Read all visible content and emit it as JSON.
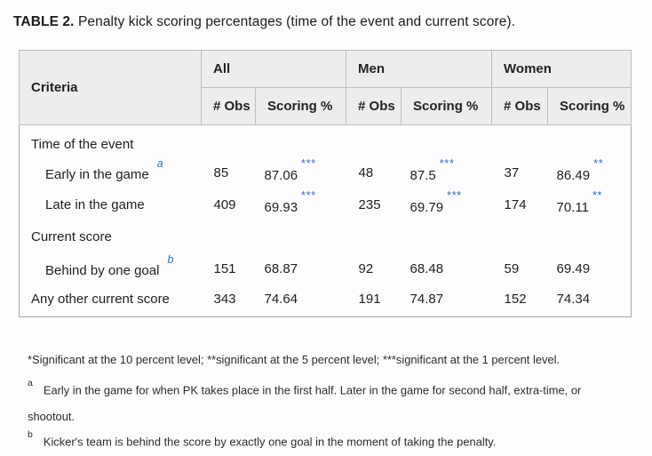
{
  "title": {
    "label": "TABLE 2.",
    "text": " Penalty kick scoring percentages (time of the event and current score)."
  },
  "accent_color": "#2a6fc4",
  "table": {
    "criteria_header": "Criteria",
    "groups": [
      {
        "label": "All"
      },
      {
        "label": "Men"
      },
      {
        "label": "Women"
      }
    ],
    "subheaders": {
      "obs": "# Obs",
      "scoring": "Scoring %"
    },
    "rows": [
      {
        "type": "group",
        "label": "Time of the event"
      },
      {
        "type": "data",
        "label": "Early in the game",
        "sup": "a",
        "cells": [
          {
            "obs": "85",
            "pct": "87.06",
            "stars": "***"
          },
          {
            "obs": "48",
            "pct": "87.5",
            "stars": "***"
          },
          {
            "obs": "37",
            "pct": "86.49",
            "stars": "**"
          }
        ]
      },
      {
        "type": "data",
        "label": "Late in the game",
        "cells": [
          {
            "obs": "409",
            "pct": "69.93",
            "stars": "***"
          },
          {
            "obs": "235",
            "pct": "69.79",
            "stars": "***"
          },
          {
            "obs": "174",
            "pct": "70.11",
            "stars": "**"
          }
        ]
      },
      {
        "type": "group",
        "label": "Current score"
      },
      {
        "type": "data",
        "label": "Behind by one goal",
        "sup": "b",
        "cells": [
          {
            "obs": "151",
            "pct": "68.87",
            "stars": ""
          },
          {
            "obs": "92",
            "pct": "68.48",
            "stars": ""
          },
          {
            "obs": "59",
            "pct": "69.49",
            "stars": ""
          }
        ]
      },
      {
        "type": "data",
        "label": "Any other current score",
        "cells": [
          {
            "obs": "343",
            "pct": "74.64",
            "stars": ""
          },
          {
            "obs": "191",
            "pct": "74.87",
            "stars": ""
          },
          {
            "obs": "152",
            "pct": "74.34",
            "stars": ""
          }
        ]
      }
    ]
  },
  "footnotes": {
    "significance": "*Significant at the 10 percent level; **significant at the 5 percent level; ***significant at the 1 percent level.",
    "a": {
      "sup": "a",
      "text": "Early in the game for when PK takes place in the first half. Later in the game for second half, extra-time, or shootout."
    },
    "b": {
      "sup": "b",
      "text": "Kicker's team is behind the score by exactly one goal in the moment of taking the penalty."
    }
  }
}
